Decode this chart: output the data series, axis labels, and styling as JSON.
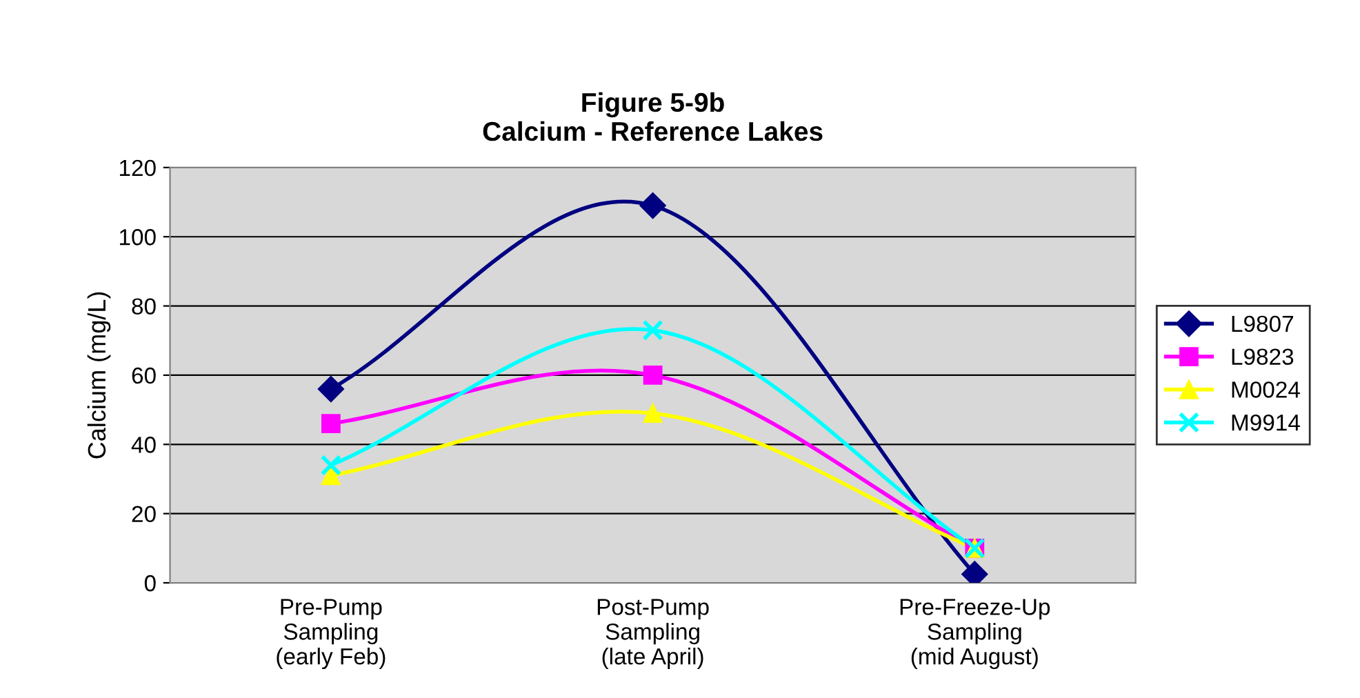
{
  "chart_data": {
    "type": "line",
    "title": "Figure 5-9b\nCalcium - Reference Lakes",
    "ylabel": "Calcium (mg/L)",
    "categories": [
      "Pre-Pump\nSampling\n(early Feb)",
      "Post-Pump\nSampling\n(late April)",
      "Pre-Freeze-Up\nSampling\n(mid August)"
    ],
    "ylim": [
      0,
      120
    ],
    "yticks": [
      0,
      20,
      40,
      60,
      80,
      100,
      120
    ],
    "grid": "y",
    "legend": "right",
    "series": [
      {
        "name": "L9807",
        "color": "#000080",
        "marker": "diamond",
        "values": [
          56,
          109,
          2.5
        ]
      },
      {
        "name": "L9823",
        "color": "#ff00ff",
        "marker": "square",
        "values": [
          46,
          60,
          10
        ]
      },
      {
        "name": "M0024",
        "color": "#ffff00",
        "marker": "triangle",
        "values": [
          31,
          49,
          10
        ]
      },
      {
        "name": "M9914",
        "color": "#00ffff",
        "marker": "cross",
        "values": [
          34,
          73,
          10
        ]
      }
    ]
  }
}
